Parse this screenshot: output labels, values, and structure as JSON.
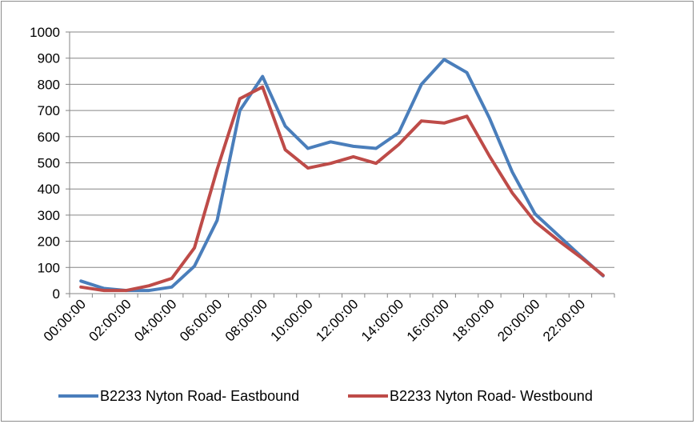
{
  "chart_data": {
    "type": "line",
    "title": "",
    "xlabel": "",
    "ylabel": "",
    "ylim": [
      0,
      1000
    ],
    "y_ticks": [
      "0",
      "100",
      "200",
      "300",
      "400",
      "500",
      "600",
      "700",
      "800",
      "900",
      "1000"
    ],
    "x_tick_labels": [
      "00:00:00",
      "02:00:00",
      "04:00:00",
      "06:00:00",
      "08:00:00",
      "10:00:00",
      "12:00:00",
      "14:00:00",
      "16:00:00",
      "18:00:00",
      "20:00:00",
      "22:00:00"
    ],
    "categories": [
      "00:00:00",
      "01:00:00",
      "02:00:00",
      "03:00:00",
      "04:00:00",
      "05:00:00",
      "06:00:00",
      "07:00:00",
      "08:00:00",
      "09:00:00",
      "10:00:00",
      "11:00:00",
      "12:00:00",
      "13:00:00",
      "14:00:00",
      "15:00:00",
      "16:00:00",
      "17:00:00",
      "18:00:00",
      "19:00:00",
      "20:00:00",
      "21:00:00",
      "22:00:00",
      "23:00:00"
    ],
    "grid": true,
    "legend_position": "bottom",
    "series": [
      {
        "name": "B2233 Nyton Road- Eastbound",
        "color": "#4a7ebb",
        "values": [
          48,
          20,
          12,
          12,
          25,
          105,
          280,
          700,
          830,
          640,
          555,
          580,
          563,
          555,
          615,
          800,
          895,
          845,
          670,
          465,
          305,
          225,
          145,
          68
        ]
      },
      {
        "name": "B2233 Nyton Road- Westbound",
        "color": "#be4b48",
        "values": [
          25,
          12,
          12,
          30,
          58,
          175,
          475,
          745,
          790,
          550,
          480,
          498,
          523,
          498,
          570,
          660,
          652,
          678,
          525,
          385,
          275,
          205,
          140,
          70
        ]
      }
    ]
  }
}
